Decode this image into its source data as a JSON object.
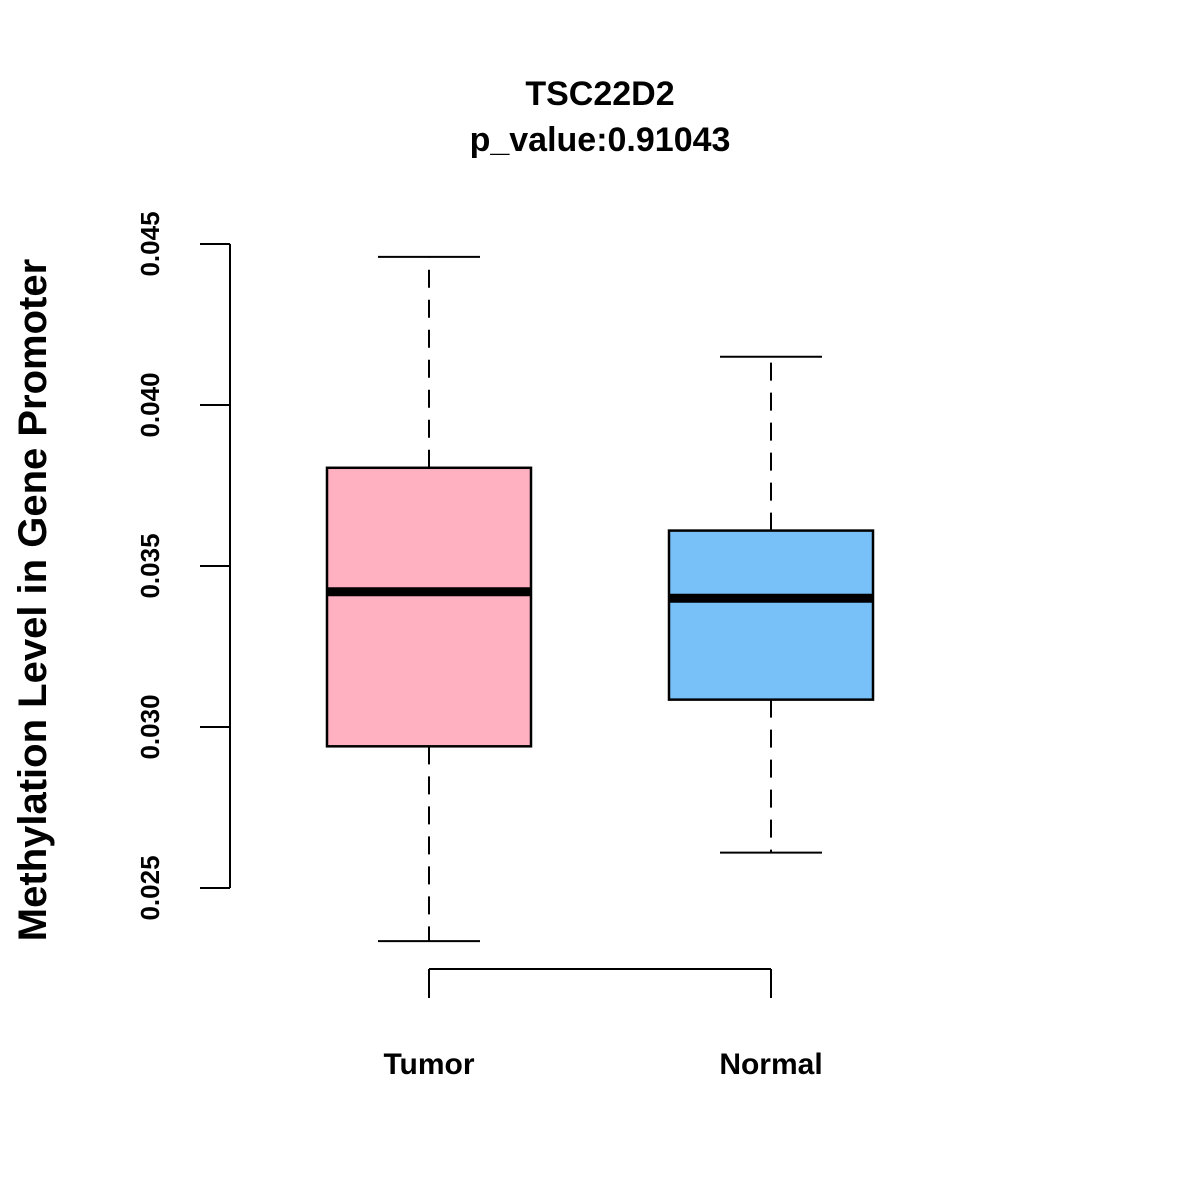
{
  "chart_data": {
    "type": "boxplot",
    "title": "TSC22D2",
    "subtitle": "p_value:0.91043",
    "xlabel": "",
    "ylabel": "Methylation Level in Gene Promoter",
    "ylim": [
      0.025,
      0.045
    ],
    "yticks": [
      0.025,
      0.03,
      0.035,
      0.04,
      0.045
    ],
    "ytick_labels": [
      "0.025",
      "0.030",
      "0.035",
      "0.040",
      "0.045"
    ],
    "categories": [
      "Tumor",
      "Normal"
    ],
    "boxes": [
      {
        "name": "Tumor",
        "whisker_low": 0.02335,
        "q1": 0.0294,
        "median": 0.0342,
        "q3": 0.03805,
        "whisker_high": 0.0446,
        "color": "#FFB0C1"
      },
      {
        "name": "Normal",
        "whisker_low": 0.0261,
        "q1": 0.03085,
        "median": 0.034,
        "q3": 0.0361,
        "whisker_high": 0.0415,
        "color": "#78C0F8"
      }
    ],
    "grid": false
  }
}
